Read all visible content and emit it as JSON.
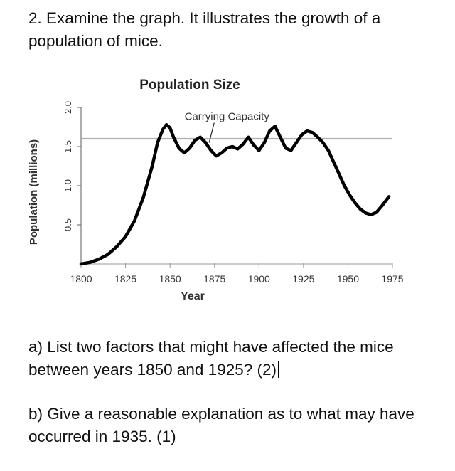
{
  "question_main": "2. Examine the graph. It illustrates the growth of a population of mice.",
  "question_a": "a) List two factors that might have affected the mice between years 1850 and 1925? (2)",
  "question_b": "b) Give a reasonable explanation as to what may have occurred in 1935.  (1)",
  "chart_data": {
    "type": "line",
    "title": "Population Size",
    "xlabel": "Year",
    "ylabel": "Population (millions)",
    "xlim": [
      1800,
      1975
    ],
    "ylim": [
      0,
      2.0
    ],
    "xticks": [
      1800,
      1825,
      1850,
      1875,
      1900,
      1925,
      1950,
      1975
    ],
    "xtick_labels": [
      "1800",
      "1825",
      "1850",
      "1875",
      "1900",
      "1925",
      "1950",
      "1975"
    ],
    "yticks": [
      0.5,
      1.0,
      1.5,
      2.0
    ],
    "ytick_labels": [
      "0.5",
      "1.0",
      "1.5",
      "2.0"
    ],
    "grid": false,
    "series": [
      {
        "name": "Population",
        "color": "#000000",
        "x": [
          1800,
          1805,
          1810,
          1815,
          1820,
          1825,
          1830,
          1835,
          1840,
          1843,
          1846,
          1848,
          1850,
          1852,
          1855,
          1858,
          1861,
          1864,
          1867,
          1870,
          1873,
          1876,
          1879,
          1882,
          1885,
          1888,
          1891,
          1894,
          1897,
          1900,
          1903,
          1906,
          1909,
          1912,
          1915,
          1918,
          1921,
          1924,
          1927,
          1930,
          1933,
          1936,
          1939,
          1942,
          1945,
          1948,
          1951,
          1954,
          1957,
          1960,
          1963,
          1966,
          1969,
          1971,
          1973
        ],
        "y": [
          0.0,
          0.02,
          0.06,
          0.12,
          0.22,
          0.35,
          0.55,
          0.85,
          1.25,
          1.55,
          1.72,
          1.78,
          1.74,
          1.62,
          1.48,
          1.42,
          1.48,
          1.58,
          1.62,
          1.55,
          1.45,
          1.38,
          1.42,
          1.48,
          1.5,
          1.47,
          1.53,
          1.62,
          1.52,
          1.45,
          1.55,
          1.7,
          1.76,
          1.62,
          1.48,
          1.45,
          1.55,
          1.65,
          1.7,
          1.68,
          1.62,
          1.55,
          1.45,
          1.3,
          1.15,
          1.0,
          0.88,
          0.78,
          0.7,
          0.65,
          0.63,
          0.66,
          0.74,
          0.8,
          0.86
        ]
      },
      {
        "name": "Carrying Capacity",
        "color": "#b0b0b0",
        "x": [
          1800,
          1975
        ],
        "y": [
          1.6,
          1.6
        ]
      }
    ],
    "annotations": [
      {
        "text": "Carrying Capacity",
        "x": 1882,
        "y": 1.84,
        "arrow_to_x": 1872,
        "arrow_to_y": 1.55
      }
    ]
  }
}
